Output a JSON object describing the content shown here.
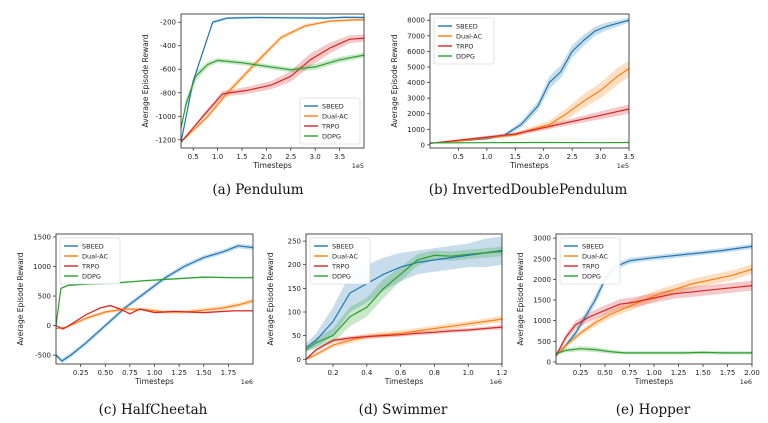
{
  "colors": {
    "SBEED": "#1f77b4",
    "Dual-AC": "#ff7f0e",
    "TRPO": "#d62728",
    "DDPG": "#2ca02c"
  },
  "chart_data": [
    {
      "type": "line",
      "caption": "(a) Pendulum",
      "xlabel": "Timesteps",
      "ylabel": "Average Episode Reward",
      "x_scale_label": "1e5",
      "xlim": [
        0.25,
        4.0
      ],
      "ylim": [
        -1270,
        -130
      ],
      "xticks": [
        0.5,
        1.0,
        1.5,
        2.0,
        2.5,
        3.0,
        3.5
      ],
      "xticklabels": [
        "0.5",
        "1.0",
        "1.5",
        "2.0",
        "2.5",
        "3.0",
        "3.5"
      ],
      "yticks": [
        -1200,
        -1000,
        -800,
        -600,
        -400,
        -200
      ],
      "yticklabels": [
        "-1200",
        "-1000",
        "-800",
        "-600",
        "-400",
        "-200"
      ],
      "legend": "bottom-right",
      "series": [
        {
          "name": "SBEED",
          "x": [
            0.25,
            0.5,
            0.9,
            1.2,
            1.8,
            2.5,
            3.2,
            3.6,
            4.0
          ],
          "y": [
            -1220,
            -700,
            -200,
            -165,
            -160,
            -162,
            -165,
            -158,
            -160
          ],
          "band": [
            0,
            10,
            15,
            10,
            8,
            8,
            10,
            10,
            10
          ]
        },
        {
          "name": "Dual-AC",
          "x": [
            0.25,
            0.8,
            1.2,
            1.8,
            2.3,
            2.8,
            3.3,
            3.8,
            4.0
          ],
          "y": [
            -1220,
            -1000,
            -800,
            -540,
            -330,
            -230,
            -190,
            -180,
            -180
          ],
          "band": [
            0,
            20,
            25,
            25,
            20,
            15,
            10,
            10,
            10
          ]
        },
        {
          "name": "TRPO",
          "x": [
            0.25,
            0.7,
            1.1,
            1.6,
            2.1,
            2.5,
            2.9,
            3.3,
            3.7,
            4.0
          ],
          "y": [
            -1220,
            -1000,
            -810,
            -780,
            -735,
            -660,
            -520,
            -420,
            -345,
            -335
          ],
          "band": [
            0,
            20,
            25,
            30,
            35,
            45,
            55,
            45,
            35,
            30
          ]
        },
        {
          "name": "DDPG",
          "x": [
            0.25,
            0.35,
            0.55,
            0.8,
            1.0,
            1.5,
            2.0,
            2.5,
            3.0,
            3.5,
            4.0
          ],
          "y": [
            -1100,
            -900,
            -660,
            -560,
            -525,
            -545,
            -575,
            -605,
            -580,
            -520,
            -480
          ],
          "band": [
            0,
            40,
            40,
            25,
            20,
            20,
            20,
            20,
            25,
            25,
            20
          ]
        }
      ]
    },
    {
      "type": "line",
      "caption": "(b) InvertedDoublePendulum",
      "xlabel": "Timesteps",
      "ylabel": "Average Episode Reward",
      "x_scale_label": "1e5",
      "xlim": [
        0.0,
        3.5
      ],
      "ylim": [
        -200,
        8400
      ],
      "xticks": [
        0.5,
        1.0,
        1.5,
        2.0,
        2.5,
        3.0,
        3.5
      ],
      "xticklabels": [
        "0.5",
        "1.0",
        "1.5",
        "2.0",
        "2.5",
        "3.0",
        "3.5"
      ],
      "yticks": [
        0,
        1000,
        2000,
        3000,
        4000,
        5000,
        6000,
        7000,
        8000
      ],
      "yticklabels": [
        "0",
        "1000",
        "2000",
        "3000",
        "4000",
        "5000",
        "6000",
        "7000",
        "8000"
      ],
      "legend": "top-left",
      "series": [
        {
          "name": "SBEED",
          "x": [
            0,
            0.5,
            1.0,
            1.3,
            1.6,
            1.9,
            2.1,
            2.3,
            2.5,
            2.7,
            2.9,
            3.1,
            3.3,
            3.5
          ],
          "y": [
            100,
            250,
            400,
            600,
            1300,
            2500,
            4000,
            4700,
            6000,
            6700,
            7300,
            7600,
            7800,
            8000
          ],
          "band": [
            30,
            40,
            60,
            100,
            200,
            300,
            400,
            400,
            400,
            350,
            300,
            250,
            200,
            150
          ]
        },
        {
          "name": "Dual-AC",
          "x": [
            0,
            0.5,
            1.0,
            1.5,
            1.8,
            2.1,
            2.4,
            2.7,
            3.0,
            3.3,
            3.5
          ],
          "y": [
            100,
            250,
            450,
            650,
            1000,
            1300,
            2000,
            2800,
            3500,
            4400,
            4900
          ],
          "band": [
            30,
            50,
            80,
            120,
            180,
            250,
            350,
            450,
            500,
            550,
            500
          ]
        },
        {
          "name": "TRPO",
          "x": [
            0,
            0.5,
            1.0,
            1.5,
            2.0,
            2.5,
            3.0,
            3.5
          ],
          "y": [
            100,
            300,
            500,
            700,
            1100,
            1500,
            1900,
            2300
          ],
          "band": [
            30,
            60,
            80,
            120,
            150,
            200,
            250,
            300
          ]
        },
        {
          "name": "DDPG",
          "x": [
            0,
            1.0,
            2.0,
            3.0,
            3.5
          ],
          "y": [
            130,
            140,
            150,
            140,
            150
          ],
          "band": [
            10,
            10,
            10,
            10,
            10
          ]
        }
      ]
    },
    {
      "type": "line",
      "caption": "(c) HalfCheetah",
      "xlabel": "Timesteps",
      "ylabel": "Average Episode Reward",
      "x_scale_label": "1e6",
      "xlim": [
        0.0,
        2.0
      ],
      "ylim": [
        -650,
        1550
      ],
      "xticks": [
        0.25,
        0.5,
        0.75,
        1.0,
        1.25,
        1.5,
        1.75
      ],
      "xticklabels": [
        "0.25",
        "0.50",
        "0.75",
        "1.00",
        "1.25",
        "1.50",
        "1.75"
      ],
      "yticks": [
        -500,
        0,
        500,
        1000,
        1500
      ],
      "yticklabels": [
        "-500",
        "0",
        "500",
        "1000",
        "1500"
      ],
      "legend": "top-left",
      "series": [
        {
          "name": "SBEED",
          "x": [
            0,
            0.06,
            0.15,
            0.3,
            0.5,
            0.7,
            0.9,
            1.1,
            1.3,
            1.5,
            1.7,
            1.85,
            2.0
          ],
          "y": [
            -500,
            -600,
            -500,
            -300,
            0,
            300,
            550,
            800,
            1000,
            1150,
            1250,
            1350,
            1320
          ],
          "band": [
            30,
            40,
            40,
            40,
            40,
            40,
            40,
            40,
            40,
            40,
            40,
            40,
            40
          ]
        },
        {
          "name": "Dual-AC",
          "x": [
            0,
            0.1,
            0.3,
            0.5,
            0.7,
            0.9,
            1.1,
            1.3,
            1.5,
            1.7,
            1.85,
            2.0
          ],
          "y": [
            -50,
            -30,
            120,
            230,
            280,
            270,
            230,
            230,
            260,
            300,
            350,
            420
          ],
          "band": [
            10,
            20,
            30,
            30,
            30,
            30,
            30,
            30,
            40,
            40,
            40,
            40
          ]
        },
        {
          "name": "TRPO",
          "x": [
            0,
            0.07,
            0.15,
            0.3,
            0.45,
            0.55,
            0.65,
            0.75,
            0.85,
            1.0,
            1.2,
            1.5,
            1.8,
            2.0
          ],
          "y": [
            0,
            -60,
            20,
            180,
            300,
            340,
            280,
            200,
            280,
            220,
            240,
            220,
            250,
            250
          ],
          "band": [
            10,
            10,
            10,
            15,
            15,
            15,
            15,
            15,
            15,
            15,
            15,
            15,
            15,
            15
          ]
        },
        {
          "name": "DDPG",
          "x": [
            0,
            0.05,
            0.12,
            0.3,
            0.6,
            0.9,
            1.2,
            1.5,
            1.8,
            2.0
          ],
          "y": [
            0,
            630,
            680,
            700,
            720,
            760,
            790,
            820,
            810,
            810
          ],
          "band": [
            10,
            15,
            15,
            15,
            15,
            15,
            15,
            15,
            15,
            15
          ]
        }
      ]
    },
    {
      "type": "line",
      "caption": "(d) Swimmer",
      "xlabel": "Timesteps",
      "ylabel": "Average Episode Reward",
      "x_scale_label": "1e6",
      "xlim": [
        0.04,
        1.2
      ],
      "ylim": [
        -10,
        265
      ],
      "xticks": [
        0.2,
        0.4,
        0.6,
        0.8,
        1.0,
        1.2
      ],
      "xticklabels": [
        "0.2",
        "0.4",
        "0.6",
        "0.8",
        "1.0",
        "1.2"
      ],
      "yticks": [
        0,
        50,
        100,
        150,
        200,
        250
      ],
      "yticklabels": [
        "0",
        "50",
        "100",
        "150",
        "200",
        "250"
      ],
      "legend": "top-left",
      "series": [
        {
          "name": "SBEED",
          "x": [
            0.04,
            0.1,
            0.2,
            0.3,
            0.4,
            0.5,
            0.6,
            0.7,
            0.8,
            0.9,
            1.0,
            1.1,
            1.2
          ],
          "y": [
            25,
            40,
            80,
            140,
            160,
            180,
            195,
            205,
            210,
            215,
            220,
            225,
            230
          ],
          "band": [
            8,
            15,
            30,
            40,
            40,
            35,
            30,
            25,
            25,
            25,
            25,
            30,
            30
          ]
        },
        {
          "name": "Dual-AC",
          "x": [
            0.04,
            0.1,
            0.2,
            0.3,
            0.4,
            0.5,
            0.6,
            0.7,
            0.8,
            0.9,
            1.0,
            1.1,
            1.2
          ],
          "y": [
            0,
            10,
            30,
            40,
            48,
            52,
            55,
            60,
            65,
            70,
            75,
            80,
            85
          ],
          "band": [
            2,
            4,
            5,
            6,
            6,
            6,
            6,
            6,
            6,
            6,
            6,
            6,
            7
          ]
        },
        {
          "name": "TRPO",
          "x": [
            0.04,
            0.1,
            0.2,
            0.3,
            0.4,
            0.5,
            0.6,
            0.7,
            0.8,
            0.9,
            1.0,
            1.1,
            1.2
          ],
          "y": [
            0,
            20,
            40,
            45,
            48,
            50,
            52,
            55,
            57,
            60,
            62,
            65,
            68
          ],
          "band": [
            2,
            3,
            4,
            4,
            4,
            4,
            4,
            4,
            4,
            4,
            4,
            4,
            5
          ]
        },
        {
          "name": "DDPG",
          "x": [
            0.04,
            0.1,
            0.2,
            0.3,
            0.4,
            0.5,
            0.6,
            0.7,
            0.8,
            0.9,
            1.0,
            1.1,
            1.2
          ],
          "y": [
            20,
            35,
            50,
            90,
            110,
            150,
            180,
            210,
            220,
            218,
            222,
            225,
            228
          ],
          "band": [
            5,
            10,
            15,
            20,
            20,
            20,
            15,
            12,
            10,
            10,
            10,
            10,
            10
          ]
        }
      ]
    },
    {
      "type": "line",
      "caption": "(e) Hopper",
      "xlabel": "Timesteps",
      "ylabel": "Average Episode Reward",
      "x_scale_label": "1e6",
      "xlim": [
        0.0,
        2.0
      ],
      "ylim": [
        -50,
        3100
      ],
      "xticks": [
        0.25,
        0.5,
        0.75,
        1.0,
        1.25,
        1.5,
        1.75,
        2.0
      ],
      "xticklabels": [
        "0.25",
        "0.50",
        "0.75",
        "1.00",
        "1.25",
        "1.50",
        "1.75",
        "2.00"
      ],
      "yticks": [
        0,
        500,
        1000,
        1500,
        2000,
        2500,
        3000
      ],
      "yticklabels": [
        "0",
        "500",
        "1000",
        "1500",
        "2000",
        "2500",
        "3000"
      ],
      "legend": "top-left",
      "series": [
        {
          "name": "SBEED",
          "x": [
            0,
            0.1,
            0.2,
            0.3,
            0.4,
            0.5,
            0.6,
            0.75,
            0.9,
            1.1,
            1.3,
            1.5,
            1.7,
            1.85,
            2.0
          ],
          "y": [
            150,
            400,
            700,
            1100,
            1500,
            2000,
            2300,
            2450,
            2500,
            2550,
            2600,
            2650,
            2700,
            2750,
            2800
          ],
          "band": [
            30,
            60,
            80,
            100,
            120,
            100,
            80,
            70,
            60,
            60,
            60,
            60,
            60,
            60,
            60
          ]
        },
        {
          "name": "Dual-AC",
          "x": [
            0,
            0.1,
            0.25,
            0.4,
            0.55,
            0.7,
            0.85,
            1.0,
            1.2,
            1.4,
            1.6,
            1.8,
            2.0
          ],
          "y": [
            150,
            400,
            700,
            950,
            1150,
            1300,
            1450,
            1600,
            1750,
            1900,
            2000,
            2100,
            2250
          ],
          "band": [
            30,
            50,
            70,
            90,
            100,
            110,
            120,
            120,
            120,
            120,
            120,
            120,
            120
          ]
        },
        {
          "name": "TRPO",
          "x": [
            0,
            0.1,
            0.2,
            0.35,
            0.5,
            0.65,
            0.8,
            1.0,
            1.2,
            1.4,
            1.6,
            1.8,
            2.0
          ],
          "y": [
            150,
            600,
            900,
            1100,
            1250,
            1400,
            1450,
            1550,
            1650,
            1700,
            1750,
            1800,
            1850
          ],
          "band": [
            40,
            80,
            100,
            110,
            120,
            120,
            120,
            120,
            120,
            120,
            120,
            120,
            120
          ]
        },
        {
          "name": "DDPG",
          "x": [
            0,
            0.1,
            0.25,
            0.4,
            0.55,
            0.7,
            0.9,
            1.1,
            1.3,
            1.5,
            1.7,
            1.85,
            2.0
          ],
          "y": [
            200,
            280,
            320,
            300,
            250,
            220,
            220,
            220,
            220,
            230,
            220,
            220,
            220
          ],
          "band": [
            30,
            50,
            60,
            60,
            50,
            40,
            40,
            40,
            40,
            40,
            40,
            40,
            40
          ]
        }
      ]
    }
  ]
}
